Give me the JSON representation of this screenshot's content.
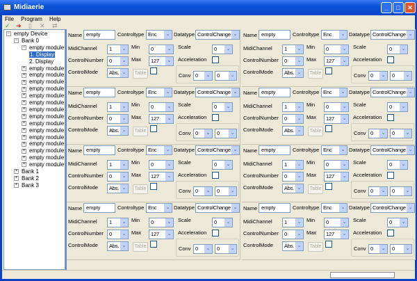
{
  "window": {
    "title": "Midiaerie",
    "buttons": [
      "_",
      "□",
      "✕"
    ]
  },
  "menu": [
    "File",
    "Program",
    "Help"
  ],
  "toolbar": [
    "save-icon",
    "export-icon",
    "new-icon",
    "delete-icon",
    "swap-icon"
  ],
  "tree": [
    {
      "label": "empty Device",
      "level": 0,
      "exp": "−"
    },
    {
      "label": "Bank 0",
      "level": 1,
      "exp": "−"
    },
    {
      "label": "empty module",
      "level": 2,
      "exp": "−"
    },
    {
      "label": "1. Display",
      "level": 3,
      "selected": true
    },
    {
      "label": "2. Display",
      "level": 3
    },
    {
      "label": "empty module",
      "level": 2,
      "exp": "+"
    },
    {
      "label": "empty module",
      "level": 2,
      "exp": "+"
    },
    {
      "label": "empty module",
      "level": 2,
      "exp": "+"
    },
    {
      "label": "empty module",
      "level": 2,
      "exp": "+"
    },
    {
      "label": "empty module",
      "level": 2,
      "exp": "+"
    },
    {
      "label": "empty module",
      "level": 2,
      "exp": "+"
    },
    {
      "label": "empty module",
      "level": 2,
      "exp": "+"
    },
    {
      "label": "empty module",
      "level": 2,
      "exp": "+"
    },
    {
      "label": "empty module",
      "level": 2,
      "exp": "+"
    },
    {
      "label": "empty module",
      "level": 2,
      "exp": "+"
    },
    {
      "label": "empty module",
      "level": 2,
      "exp": "+"
    },
    {
      "label": "empty module",
      "level": 2,
      "exp": "+"
    },
    {
      "label": "empty module",
      "level": 2,
      "exp": "+"
    },
    {
      "label": "empty module",
      "level": 2,
      "exp": "+"
    },
    {
      "label": "empty module",
      "level": 2,
      "exp": "+"
    },
    {
      "label": "Bank 1",
      "level": 1,
      "exp": "+"
    },
    {
      "label": "Bank 2",
      "level": 1,
      "exp": "+"
    },
    {
      "label": "Bank 3",
      "level": 1,
      "exp": "+"
    }
  ],
  "labels": {
    "name": "Name",
    "controltype": "Controltype",
    "datatype": "Datatype",
    "midichannel": "MidiChannel",
    "min": "Min",
    "scale": "Scale",
    "controlnumber": "ControlNumber",
    "max": "Max",
    "acceleration": "Acceleration",
    "controlmode": "ControlMode",
    "table": "Table",
    "conv": "Conv"
  },
  "panels": [
    {
      "name": "empty",
      "controltype": "Enc",
      "datatype": "ControlChange",
      "midichannel": "1",
      "min": "0",
      "scale": "0",
      "controlnumber": "0",
      "max": "127",
      "acceleration": false,
      "controlmode": "Abs.",
      "table": false,
      "conv1": "0",
      "conv2": "0"
    },
    {
      "name": "empty",
      "controltype": "Enc",
      "datatype": "ControlChange",
      "midichannel": "1",
      "min": "0",
      "scale": "0",
      "controlnumber": "0",
      "max": "127",
      "acceleration": false,
      "controlmode": "Abs.",
      "table": false,
      "conv1": "0",
      "conv2": "0"
    },
    {
      "name": "empty",
      "controltype": "Enc",
      "datatype": "ControlChange",
      "midichannel": "1",
      "min": "0",
      "scale": "0",
      "controlnumber": "0",
      "max": "127",
      "acceleration": false,
      "controlmode": "Abs.",
      "table": false,
      "conv1": "0",
      "conv2": "0"
    },
    {
      "name": "empty",
      "controltype": "Enc",
      "datatype": "ControlChange",
      "midichannel": "1",
      "min": "0",
      "scale": "0",
      "controlnumber": "0",
      "max": "127",
      "acceleration": false,
      "controlmode": "Abs.",
      "table": false,
      "conv1": "0",
      "conv2": "0"
    },
    {
      "name": "empty",
      "controltype": "Enc",
      "datatype": "ControlChange",
      "midichannel": "1",
      "min": "0",
      "scale": "0",
      "controlnumber": "0",
      "max": "127",
      "acceleration": false,
      "controlmode": "Abs.",
      "table": false,
      "conv1": "0",
      "conv2": "0"
    },
    {
      "name": "empty",
      "controltype": "Enc",
      "datatype": "ControlChange",
      "midichannel": "1",
      "min": "0",
      "scale": "0",
      "controlnumber": "0",
      "max": "127",
      "acceleration": false,
      "controlmode": "Abs.",
      "table": false,
      "conv1": "0",
      "conv2": "0"
    },
    {
      "name": "empty",
      "controltype": "Enc",
      "datatype": "ControlChange",
      "midichannel": "1",
      "min": "0",
      "scale": "0",
      "controlnumber": "0",
      "max": "127",
      "acceleration": false,
      "controlmode": "Abs.",
      "table": false,
      "conv1": "0",
      "conv2": "0"
    },
    {
      "name": "empty",
      "controltype": "Enc",
      "datatype": "ControlChange",
      "midichannel": "1",
      "min": "0",
      "scale": "0",
      "controlnumber": "0",
      "max": "127",
      "acceleration": false,
      "controlmode": "Abs.",
      "table": false,
      "conv1": "0",
      "conv2": "0"
    }
  ]
}
